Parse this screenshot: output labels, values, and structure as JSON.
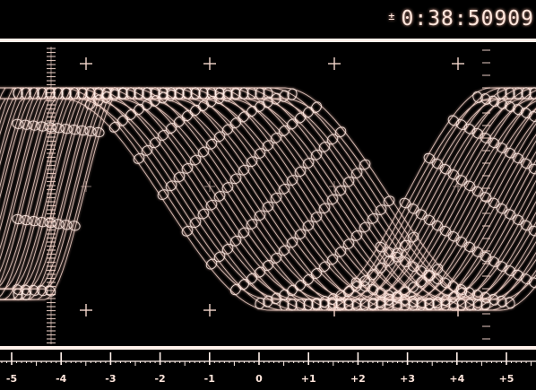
{
  "readout": {
    "sign": "±",
    "timecode": "0:38:50909"
  },
  "scale": {
    "labels": [
      "-5",
      "-4",
      "-3",
      "-2",
      "-1",
      "0",
      "+1",
      "+2",
      "+3",
      "+4",
      "+5"
    ],
    "values": [
      -5,
      -4,
      -3,
      -2,
      -1,
      0,
      1,
      2,
      3,
      4,
      5
    ]
  },
  "colors": {
    "background": "#000000",
    "trace": "#f4d6cc",
    "trace_bright": "#ffeee8",
    "rule": "#fff0ea"
  },
  "icons": {
    "graticule_marker": "crosshair-plus-icon"
  }
}
